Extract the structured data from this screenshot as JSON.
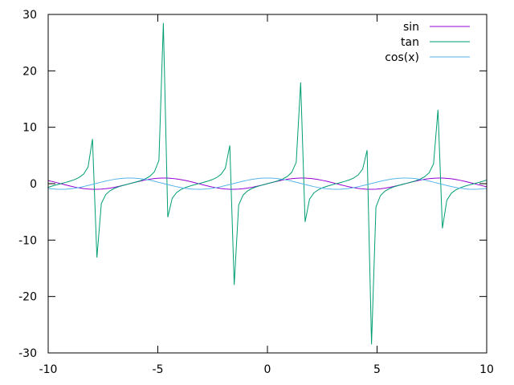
{
  "chart_data": {
    "type": "line",
    "title": "",
    "xlabel": "",
    "ylabel": "",
    "xlim": [
      -10,
      10
    ],
    "ylim": [
      -30,
      30
    ],
    "xticks": [
      -10,
      -5,
      0,
      5,
      10
    ],
    "yticks": [
      -30,
      -20,
      -10,
      0,
      10,
      20,
      30
    ],
    "grid": false,
    "legend_position": "top-right",
    "sample_count": 100,
    "series": [
      {
        "name": "sin",
        "function": "sin(x)",
        "color": "#9400d3"
      },
      {
        "name": "tan",
        "function": "tan(x)",
        "color": "#009e73"
      },
      {
        "name": "cos(x)",
        "function": "cos(x)",
        "color": "#56b4e9"
      }
    ]
  }
}
